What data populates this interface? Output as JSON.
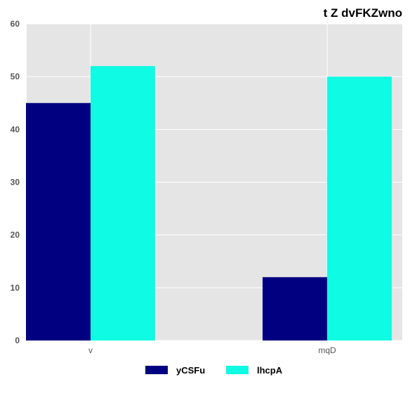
{
  "chart_data": {
    "type": "bar",
    "title": "t Z dvFKZwno",
    "categories": [
      "v",
      "mqD"
    ],
    "series": [
      {
        "name": "yCSFu",
        "values": [
          45,
          12
        ],
        "color": "#000080"
      },
      {
        "name": "lhcpA",
        "values": [
          52,
          50
        ],
        "color": "#0ffbe3"
      }
    ],
    "ylim": [
      0,
      60
    ],
    "yticks": [
      0,
      10,
      20,
      30,
      40,
      50,
      60
    ],
    "grid": true,
    "legend_position": "bottom-center",
    "background": "#e5e5e5"
  }
}
